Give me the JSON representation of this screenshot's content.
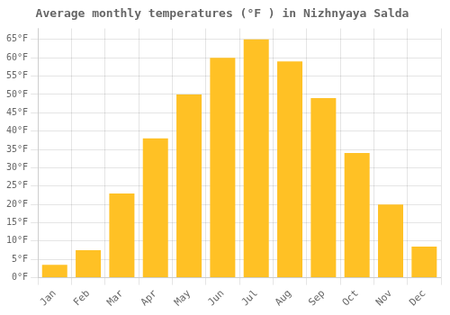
{
  "chart_data": {
    "type": "bar",
    "title": "Average monthly temperatures (°F ) in Nizhnyaya Salda",
    "categories": [
      "Jan",
      "Feb",
      "Mar",
      "Apr",
      "May",
      "Jun",
      "Jul",
      "Aug",
      "Sep",
      "Oct",
      "Nov",
      "Dec"
    ],
    "values": [
      3.5,
      7.5,
      23,
      38,
      50,
      60,
      65,
      59,
      49,
      34,
      20,
      8.5
    ],
    "color": "#FFC125",
    "ylim": [
      0,
      68
    ],
    "yticks": [
      {
        "value": 0,
        "label": "0°F"
      },
      {
        "value": 5,
        "label": "5°F"
      },
      {
        "value": 10,
        "label": "10°F"
      },
      {
        "value": 15,
        "label": "15°F"
      },
      {
        "value": 20,
        "label": "20°F"
      },
      {
        "value": 25,
        "label": "25°F"
      },
      {
        "value": 30,
        "label": "30°F"
      },
      {
        "value": 35,
        "label": "35°F"
      },
      {
        "value": 40,
        "label": "40°F"
      },
      {
        "value": 45,
        "label": "45°F"
      },
      {
        "value": 50,
        "label": "50°F"
      },
      {
        "value": 55,
        "label": "55°F"
      },
      {
        "value": 60,
        "label": "60°F"
      },
      {
        "value": 65,
        "label": "65°F"
      }
    ],
    "grid": true
  }
}
